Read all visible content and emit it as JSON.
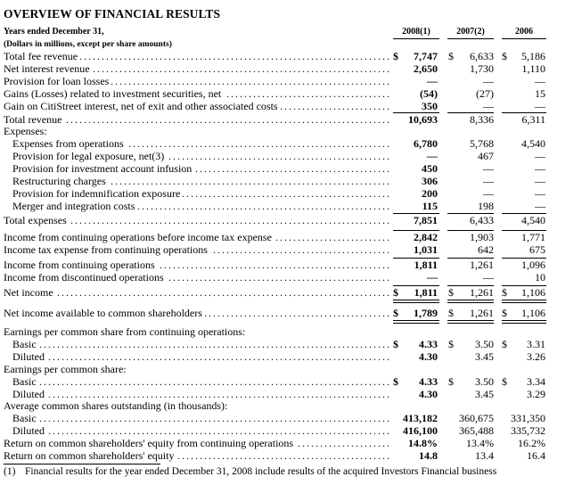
{
  "title": "OVERVIEW OF FINANCIAL RESULTS",
  "header": {
    "label": "Years ended December 31,",
    "subheader": "(Dollars in millions, except per share amounts)",
    "columns": [
      "2008(1)",
      "2007(2)",
      "2006"
    ]
  },
  "rows": [
    {
      "label": "Total fee revenue",
      "indent": 0,
      "dots": true,
      "cur": true,
      "v": [
        "7,747",
        "6,633",
        "5,186"
      ]
    },
    {
      "label": "Net interest revenue",
      "indent": 0,
      "dots": true,
      "v": [
        "2,650",
        "1,730",
        "1,110"
      ]
    },
    {
      "label": "Provision for loan losses",
      "indent": 0,
      "dots": true,
      "v": [
        "—",
        "—",
        "—"
      ]
    },
    {
      "label": "Gains (Losses) related to investment securities, net",
      "indent": 0,
      "dots": true,
      "v": [
        "(54)",
        "(27)",
        "15"
      ]
    },
    {
      "label": "Gain on CitiStreet interest, net of exit and other associated costs",
      "indent": 0,
      "dots": true,
      "v": [
        "350",
        "—",
        "—"
      ]
    },
    {
      "label": "Total revenue",
      "indent": 0,
      "dots": true,
      "v": [
        "10,693",
        "8,336",
        "6,311"
      ]
    },
    {
      "label": "Expenses:",
      "indent": 0,
      "dots": false,
      "v": [
        "",
        "",
        ""
      ]
    },
    {
      "label": "Expenses from operations",
      "indent": 1,
      "dots": true,
      "v": [
        "6,780",
        "5,768",
        "4,540"
      ]
    },
    {
      "label": "Provision for legal exposure, net(3)",
      "indent": 1,
      "dots": true,
      "v": [
        "—",
        "467",
        "—"
      ]
    },
    {
      "label": "Provision for investment account infusion",
      "indent": 1,
      "dots": true,
      "v": [
        "450",
        "—",
        "—"
      ]
    },
    {
      "label": "Restructuring charges",
      "indent": 1,
      "dots": true,
      "v": [
        "306",
        "—",
        "—"
      ]
    },
    {
      "label": "Provision for indemnification exposure",
      "indent": 1,
      "dots": true,
      "v": [
        "200",
        "—",
        "—"
      ]
    },
    {
      "label": "Merger and integration costs",
      "indent": 1,
      "dots": true,
      "v": [
        "115",
        "198",
        "—"
      ]
    },
    {
      "label": "Total expenses",
      "indent": 0,
      "dots": true,
      "v": [
        "7,851",
        "6,433",
        "4,540"
      ]
    },
    {
      "label": "Income from continuing operations before income tax expense",
      "indent": 0,
      "dots": true,
      "v": [
        "2,842",
        "1,903",
        "1,771"
      ]
    },
    {
      "label": "Income tax expense from continuing operations",
      "indent": 0,
      "dots": true,
      "v": [
        "1,031",
        "642",
        "675"
      ]
    },
    {
      "label": "Income from continuing operations",
      "indent": 0,
      "dots": true,
      "v": [
        "1,811",
        "1,261",
        "1,096"
      ]
    },
    {
      "label": "Income from discontinued operations",
      "indent": 0,
      "dots": true,
      "v": [
        "—",
        "—",
        "10"
      ]
    },
    {
      "label": "Net income",
      "indent": 0,
      "dots": true,
      "cur": true,
      "v": [
        "1,811",
        "1,261",
        "1,106"
      ]
    },
    {
      "label": "Net income available to common shareholders",
      "indent": 0,
      "dots": true,
      "cur": true,
      "v": [
        "1,789",
        "1,261",
        "1,106"
      ]
    },
    {
      "label": "Earnings per common share from continuing operations:",
      "indent": 0,
      "dots": false,
      "v": [
        "",
        "",
        ""
      ]
    },
    {
      "label": "Basic",
      "indent": 1,
      "dots": true,
      "cur": true,
      "v": [
        "4.33",
        "3.50",
        "3.31"
      ]
    },
    {
      "label": "Diluted",
      "indent": 1,
      "dots": true,
      "v": [
        "4.30",
        "3.45",
        "3.26"
      ]
    },
    {
      "label": "Earnings per common share:",
      "indent": 0,
      "dots": false,
      "v": [
        "",
        "",
        ""
      ]
    },
    {
      "label": "Basic",
      "indent": 1,
      "dots": true,
      "cur": true,
      "v": [
        "4.33",
        "3.50",
        "3.34"
      ]
    },
    {
      "label": "Diluted",
      "indent": 1,
      "dots": true,
      "v": [
        "4.30",
        "3.45",
        "3.29"
      ]
    },
    {
      "label": "Average common shares outstanding (in thousands):",
      "indent": 0,
      "dots": false,
      "v": [
        "",
        "",
        ""
      ]
    },
    {
      "label": "Basic",
      "indent": 1,
      "dots": true,
      "v": [
        "413,182",
        "360,675",
        "331,350"
      ]
    },
    {
      "label": "Diluted",
      "indent": 1,
      "dots": true,
      "v": [
        "416,100",
        "365,488",
        "335,732"
      ]
    },
    {
      "label": "Return on common shareholders' equity from continuing operations",
      "indent": 0,
      "dots": true,
      "v": [
        "14.8%",
        "13.4%",
        "16.2%"
      ]
    },
    {
      "label": "Return on common shareholders' equity",
      "indent": 0,
      "dots": true,
      "v": [
        "14.8",
        "13.4",
        "16.4"
      ]
    }
  ],
  "currency_symbol": "$",
  "footnote": {
    "num": "(1)",
    "text": "Financial results for the year ended December 31, 2008 include results of the acquired Investors Financial business"
  }
}
